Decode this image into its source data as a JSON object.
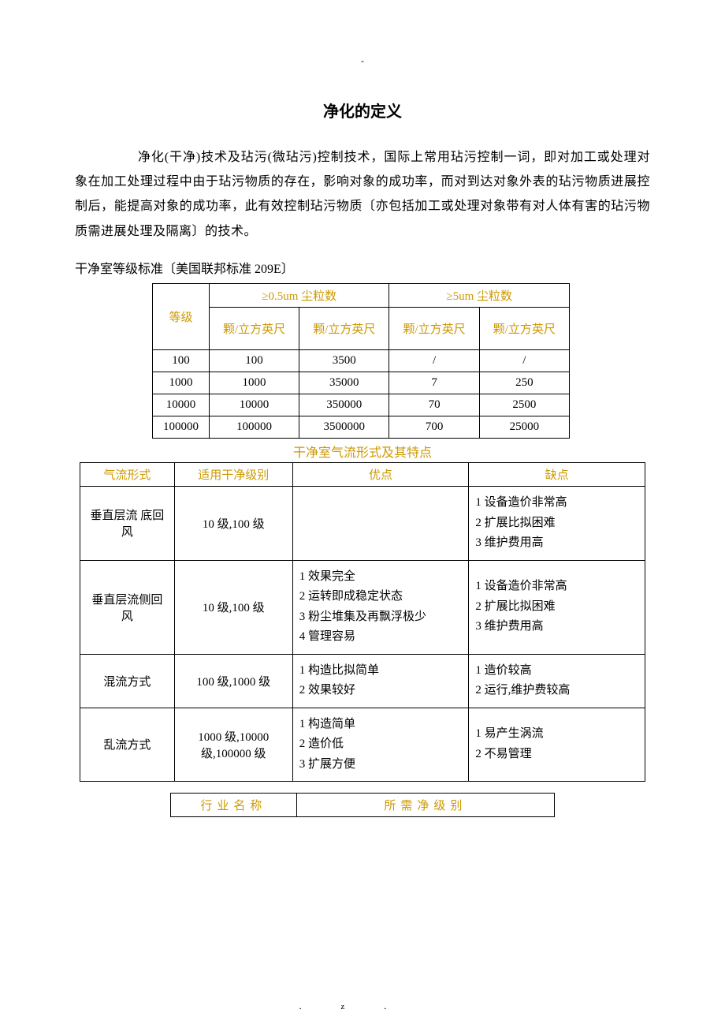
{
  "top_dash": "-",
  "title": "净化的定义",
  "body_text": "净化(干净)技术及玷污(微玷污)控制技术，国际上常用玷污控制一词，即对加工或处理对象在加工处理过程中由于玷污物质的存在，影响对象的成功率，而对到达对象外表的玷污物质进展控制后，能提高对象的成功率，此有效控制玷污物质〔亦包括加工或处理对象带有对人体有害的玷污物质需进展处理及隔离〕的技术。",
  "table1": {
    "caption": "干净室等级标准〔美国联邦标准 209E〕",
    "h_level": "等级",
    "h_05": "≥0.5um 尘粒数",
    "h_5": "≥5um 尘粒数",
    "h_unit": "颗/立方英尺",
    "rows": [
      [
        "100",
        "100",
        "3500",
        "/",
        "/"
      ],
      [
        "1000",
        "1000",
        "35000",
        "7",
        "250"
      ],
      [
        "10000",
        "10000",
        "350000",
        "70",
        "2500"
      ],
      [
        "100000",
        "100000",
        "3500000",
        "700",
        "25000"
      ]
    ]
  },
  "table2": {
    "caption": "干净室气流形式及其特点",
    "headers": [
      "气流形式",
      "适用干净级别",
      "优点",
      "缺点"
    ],
    "rows": [
      {
        "form": "垂直层流 底回风",
        "level": "10 级,100 级",
        "adv": "",
        "dis": "1 设备造价非常高\n2 扩展比拟困难\n3 维护费用高"
      },
      {
        "form": "垂直层流侧回风",
        "level": "10 级,100 级",
        "adv": "1 效果完全\n2 运转即成稳定状态\n3 粉尘堆集及再飘浮极少\n4 管理容易",
        "dis": "1 设备造价非常高\n2 扩展比拟困难\n3 维护费用高"
      },
      {
        "form": "混流方式",
        "level": "100 级,1000 级",
        "adv": "1 构造比拟简单\n2 效果较好",
        "dis": "1 造价较高\n2 运行,维护费较高"
      },
      {
        "form": "乱流方式",
        "level": "1000 级,10000 级,100000 级",
        "adv": "1 构造简单\n2 造价低\n3 扩展方便",
        "dis": "1 易产生涡流\n2 不易管理"
      }
    ]
  },
  "table3": {
    "h1": "行业名称",
    "h2": "所需净级别"
  },
  "footer": ".z."
}
